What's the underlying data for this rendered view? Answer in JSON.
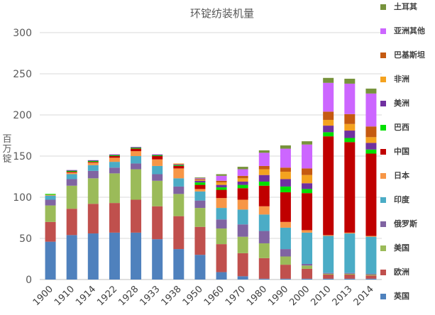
{
  "chart_data": {
    "type": "bar",
    "stacked": true,
    "title": "环锭纺装机量",
    "ylabel": "百万锭",
    "xlabel": "",
    "ylim": [
      0,
      300
    ],
    "yticks": [
      0,
      50,
      100,
      150,
      200,
      250,
      300
    ],
    "grid": true,
    "legend_position": "right",
    "categories": [
      "1900",
      "1910",
      "1914",
      "1922",
      "1928",
      "1933",
      "1938",
      "1950",
      "1960",
      "1970",
      "1980",
      "1990",
      "2000",
      "2010",
      "2013",
      "2014"
    ],
    "series": [
      {
        "name": "英国",
        "color": "#4f81bd",
        "values": [
          46,
          54,
          56,
          57,
          57,
          49,
          37,
          30,
          9,
          4,
          1,
          1,
          1,
          1,
          1,
          1
        ]
      },
      {
        "name": "欧洲",
        "color": "#c0504d",
        "values": [
          24,
          32,
          36,
          36,
          40,
          40,
          40,
          34,
          34,
          28,
          25,
          17,
          12,
          5,
          5,
          4
        ]
      },
      {
        "name": "美国",
        "color": "#9bbb59",
        "values": [
          20,
          28,
          31,
          36,
          37,
          31,
          27,
          23,
          19,
          20,
          18,
          10,
          4,
          1,
          1,
          1
        ]
      },
      {
        "name": "俄罗斯",
        "color": "#8064a2",
        "values": [
          7,
          8,
          9,
          7,
          7,
          8,
          9,
          9,
          11,
          15,
          15,
          9,
          2,
          1,
          1,
          1
        ]
      },
      {
        "name": "印度",
        "color": "#4bacc6",
        "values": [
          5,
          6,
          7,
          7,
          9,
          10,
          10,
          11,
          14,
          18,
          20,
          26,
          38,
          45,
          48,
          45
        ]
      },
      {
        "name": "日本",
        "color": "#f79646",
        "values": [
          1,
          2,
          3,
          5,
          6,
          8,
          12,
          3,
          12,
          12,
          10,
          7,
          3,
          1,
          1,
          1
        ]
      },
      {
        "name": "中国",
        "color": "#c00000",
        "values": [
          0,
          1,
          1,
          2,
          3,
          4,
          3,
          5,
          10,
          14,
          25,
          36,
          45,
          120,
          110,
          100
        ]
      },
      {
        "name": "巴西",
        "color": "#00e000",
        "values": [
          1,
          1,
          1,
          1,
          1,
          1,
          1,
          3,
          3,
          4,
          5,
          7,
          5,
          5,
          5,
          5
        ]
      },
      {
        "name": "美洲",
        "color": "#7030a0",
        "values": [
          0,
          1,
          1,
          1,
          1,
          1,
          1,
          2,
          3,
          4,
          8,
          9,
          7,
          8,
          9,
          8
        ]
      },
      {
        "name": "非洲",
        "color": "#f4a21f",
        "values": [
          0,
          0,
          0,
          0,
          0,
          0,
          1,
          1,
          3,
          4,
          7,
          9,
          10,
          7,
          8,
          7
        ]
      },
      {
        "name": "巴基斯坦",
        "color": "#c55a11",
        "values": [
          0,
          0,
          0,
          0,
          0,
          0,
          0,
          1,
          2,
          3,
          4,
          5,
          8,
          10,
          12,
          13
        ]
      },
      {
        "name": "亚洲其他",
        "color": "#cc66ff",
        "values": [
          0,
          0,
          0,
          0,
          0,
          0,
          0,
          1,
          6,
          8,
          16,
          23,
          29,
          35,
          37,
          40
        ]
      },
      {
        "name": "土耳其",
        "color": "#77933c",
        "values": [
          0,
          0,
          0,
          0,
          0,
          0,
          0,
          1,
          2,
          3,
          3,
          4,
          4,
          6,
          6,
          6
        ]
      }
    ]
  }
}
